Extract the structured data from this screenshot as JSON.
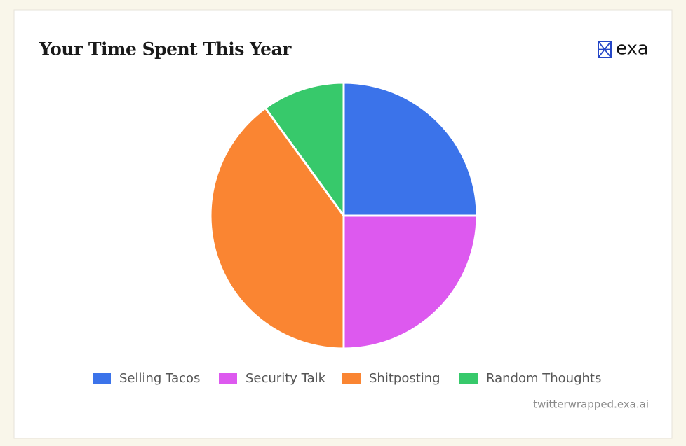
{
  "chart_data": {
    "type": "pie",
    "title": "Your Time Spent This Year",
    "categories": [
      "Selling Tacos",
      "Security Talk",
      "Shitposting",
      "Random Thoughts"
    ],
    "values": [
      25,
      25,
      40,
      10
    ],
    "colors": [
      "#3b73ea",
      "#dd59ef",
      "#fa8532",
      "#37c96b"
    ],
    "legend": "bottom"
  },
  "brand": "exa",
  "footer": "twitterwrapped.exa.ai"
}
